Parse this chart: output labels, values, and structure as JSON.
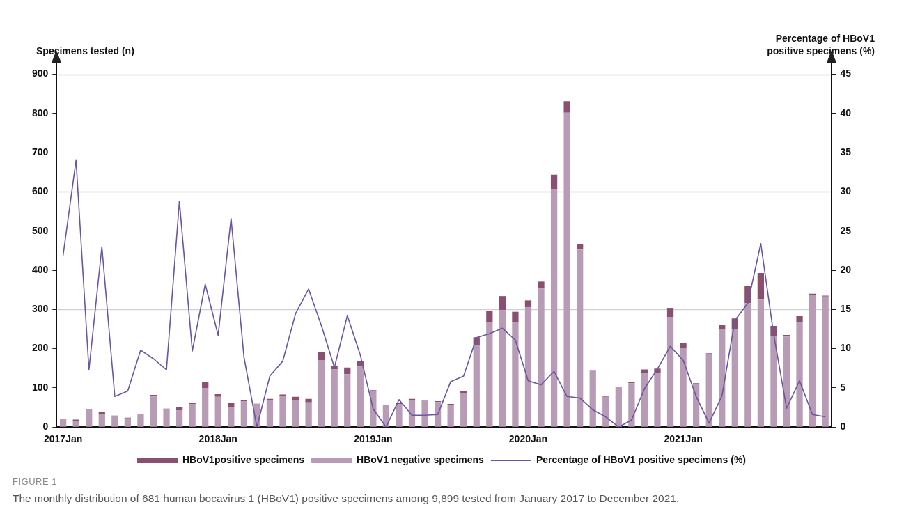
{
  "chart_data": {
    "type": "bar",
    "stacked": true,
    "ylabel": "Specimens tested (n)",
    "y2label": "Percentage of HBoV1 positive specimens (%)",
    "categories": [
      "2017Jan",
      null,
      null,
      null,
      null,
      null,
      null,
      null,
      null,
      null,
      null,
      null,
      "2018Jan",
      null,
      null,
      null,
      null,
      null,
      null,
      null,
      null,
      null,
      null,
      null,
      "2019Jan",
      null,
      null,
      null,
      null,
      null,
      null,
      null,
      null,
      null,
      null,
      null,
      "2020Jan",
      null,
      null,
      null,
      null,
      null,
      null,
      null,
      null,
      null,
      null,
      null,
      "2021Jan",
      null,
      null,
      null,
      null,
      null,
      null,
      null,
      null,
      null,
      null,
      null
    ],
    "series": [
      {
        "name": "HBoV1 negative specimens",
        "color": "#b89bb4",
        "values": [
          19,
          15,
          45,
          33,
          27,
          22,
          33,
          78,
          45,
          42,
          58,
          99,
          77,
          50,
          65,
          60,
          68,
          80,
          69,
          63,
          171,
          147,
          135,
          154,
          91,
          56,
          58,
          69,
          67,
          64,
          56,
          87,
          209,
          268,
          298,
          268,
          306,
          353,
          607,
          802,
          453,
          144,
          77,
          102,
          112,
          139,
          139,
          280,
          200,
          108,
          186,
          251,
          251,
          316,
          325,
          233,
          231,
          268,
          336,
          333
        ]
      },
      {
        "name": "HBoV1positive specimens",
        "color": "#8a5070",
        "values": [
          2,
          4,
          1,
          6,
          2,
          2,
          1,
          4,
          2,
          10,
          4,
          15,
          7,
          12,
          4,
          0,
          4,
          3,
          8,
          9,
          20,
          9,
          17,
          15,
          3,
          0,
          3,
          3,
          2,
          2,
          3,
          5,
          20,
          28,
          36,
          26,
          17,
          18,
          37,
          29,
          14,
          2,
          2,
          0,
          2,
          8,
          10,
          24,
          15,
          4,
          2,
          9,
          26,
          44,
          68,
          25,
          4,
          15,
          4,
          2
        ]
      },
      {
        "name": "Percentage of HBoV1 positive specimens (%)",
        "type": "line",
        "axis": "y2",
        "color": "#6a55a0",
        "values": [
          21.9,
          34.0,
          7.3,
          23.0,
          3.9,
          4.6,
          9.8,
          8.7,
          7.3,
          28.8,
          9.7,
          18.2,
          11.7,
          26.6,
          8.9,
          0,
          6.5,
          8.4,
          14.5,
          17.6,
          12.9,
          7.6,
          14.2,
          9.2,
          2.3,
          0,
          3.5,
          1.5,
          1.5,
          1.6,
          5.8,
          6.5,
          11.4,
          11.9,
          12.6,
          11.1,
          5.9,
          5.4,
          7.1,
          3.9,
          3.7,
          2.2,
          1.3,
          0,
          0.9,
          4.9,
          7.4,
          10.3,
          8.5,
          3.9,
          0.5,
          4.0,
          13.6,
          15.8,
          23.4,
          11.8,
          2.4,
          5.9,
          1.6,
          1.3
        ]
      }
    ],
    "ylim": [
      0,
      940
    ],
    "yticks": [
      0,
      100,
      200,
      300,
      400,
      500,
      600,
      700,
      800,
      900
    ],
    "y2lim": [
      0,
      47
    ],
    "y2ticks": [
      0,
      5,
      10,
      15,
      20,
      25,
      30,
      35,
      40,
      45
    ],
    "ref_lines": [
      {
        "axis": "y",
        "value": 300,
        "color": "#d0d0d0"
      },
      {
        "axis": "y",
        "value": 600,
        "color": "#d0d0d0"
      },
      {
        "axis": "y",
        "value": 900,
        "color": "#d0d0d0"
      }
    ],
    "grid": false,
    "legend": "bottom",
    "marker": "none",
    "line_style": "solid",
    "annotations": [
      "FIGURE 1",
      "The monthly distribution of 681 human bocavirus 1 (HBoV1) positive specimens among 9,899 tested from January 2017 to December 2021."
    ]
  }
}
